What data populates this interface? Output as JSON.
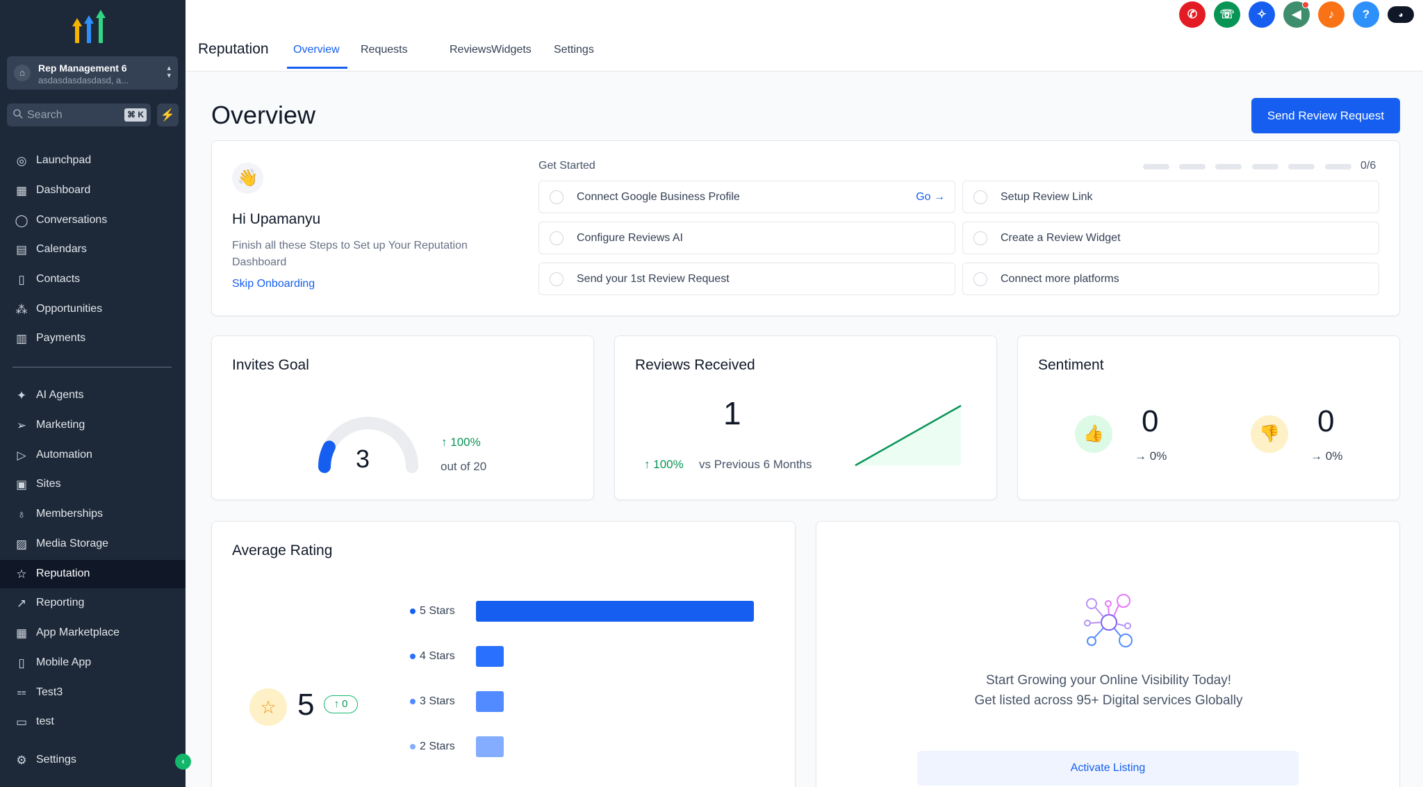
{
  "sidebar": {
    "account": {
      "name": "Rep Management 6",
      "subtitle": "asdasdasdasdasd, a..."
    },
    "search": {
      "placeholder": "Search",
      "shortcut": "⌘ K"
    },
    "items": [
      {
        "label": "Launchpad",
        "icon": "rocket-icon"
      },
      {
        "label": "Dashboard",
        "icon": "grid-icon"
      },
      {
        "label": "Conversations",
        "icon": "chat-bubble-icon"
      },
      {
        "label": "Calendars",
        "icon": "calendar-icon"
      },
      {
        "label": "Contacts",
        "icon": "address-book-icon"
      },
      {
        "label": "Opportunities",
        "icon": "pipeline-icon"
      },
      {
        "label": "Payments",
        "icon": "receipt-icon"
      },
      {
        "label": "AI Agents",
        "icon": "sparkle-icon"
      },
      {
        "label": "Marketing",
        "icon": "paper-plane-icon"
      },
      {
        "label": "Automation",
        "icon": "play-circle-icon"
      },
      {
        "label": "Sites",
        "icon": "browser-icon"
      },
      {
        "label": "Memberships",
        "icon": "award-icon"
      },
      {
        "label": "Media Storage",
        "icon": "image-icon"
      },
      {
        "label": "Reputation",
        "icon": "star-icon",
        "active": true
      },
      {
        "label": "Reporting",
        "icon": "trend-up-icon"
      },
      {
        "label": "App Marketplace",
        "icon": "apps-icon"
      },
      {
        "label": "Mobile App",
        "icon": "phone-icon"
      },
      {
        "label": "Test3",
        "icon": "custom-glyph-icon"
      },
      {
        "label": "test",
        "icon": "custom-box-icon"
      }
    ],
    "settings_label": "Settings"
  },
  "header": {
    "module_title": "Reputation",
    "tabs": [
      "Overview",
      "Requests",
      "Reviews",
      "Widgets",
      "Settings"
    ],
    "active_tab": "Overview",
    "actions": [
      {
        "icon": "voice-ai-icon",
        "color": "#e31b23"
      },
      {
        "icon": "phone-icon",
        "color": "#079455"
      },
      {
        "icon": "magic-wand-icon",
        "color": "#155eef"
      },
      {
        "icon": "megaphone-icon",
        "color": "#3e8e6e"
      },
      {
        "icon": "bell-icon",
        "color": "#f97316"
      },
      {
        "icon": "help-icon",
        "color": "#2e90fa"
      },
      {
        "icon": "user-avatar-icon",
        "color": "#101828"
      }
    ]
  },
  "page": {
    "title": "Overview",
    "primary_action": "Send Review Request"
  },
  "onboarding": {
    "greeting": "Hi Upamanyu",
    "description": "Finish all these Steps to Set up Your Reputation Dashboard",
    "skip_label": "Skip Onboarding",
    "get_started_label": "Get Started",
    "progress": {
      "completed": 0,
      "total": 6,
      "label": "0/6"
    },
    "steps": [
      {
        "label": "Connect Google Business Profile",
        "action": "Go"
      },
      {
        "label": "Setup Review Link"
      },
      {
        "label": "Configure Reviews AI"
      },
      {
        "label": "Create a Review Widget"
      },
      {
        "label": "Send your 1st Review Request"
      },
      {
        "label": "Connect more platforms"
      }
    ]
  },
  "invites_goal": {
    "title": "Invites Goal",
    "value": "3",
    "goal": 20,
    "change": "100%",
    "out_of": "out of 20"
  },
  "reviews_received": {
    "title": "Reviews Received",
    "value": "1",
    "change": "100%",
    "comparison": "vs Previous 6 Months"
  },
  "sentiment": {
    "title": "Sentiment",
    "positive": {
      "value": "0",
      "change": "0%"
    },
    "negative": {
      "value": "0",
      "change": "0%"
    }
  },
  "average_rating": {
    "title": "Average Rating",
    "value": "5",
    "change": "0",
    "chart_data": {
      "type": "bar",
      "categories": [
        "5 Stars",
        "4 Stars",
        "3 Stars",
        "2 Stars"
      ],
      "values": [
        1,
        0.1,
        0.1,
        0.1
      ],
      "colors": [
        "#155eef",
        "#2970ff",
        "#528bff",
        "#84adff"
      ]
    }
  },
  "listing": {
    "line1": "Start Growing your Online Visibility Today!",
    "line2": "Get listed across 95+ Digital services Globally",
    "button": "Activate Listing"
  },
  "colors": {
    "brand": "#155eef",
    "sidebar": "#1d2939",
    "success": "#079455"
  }
}
